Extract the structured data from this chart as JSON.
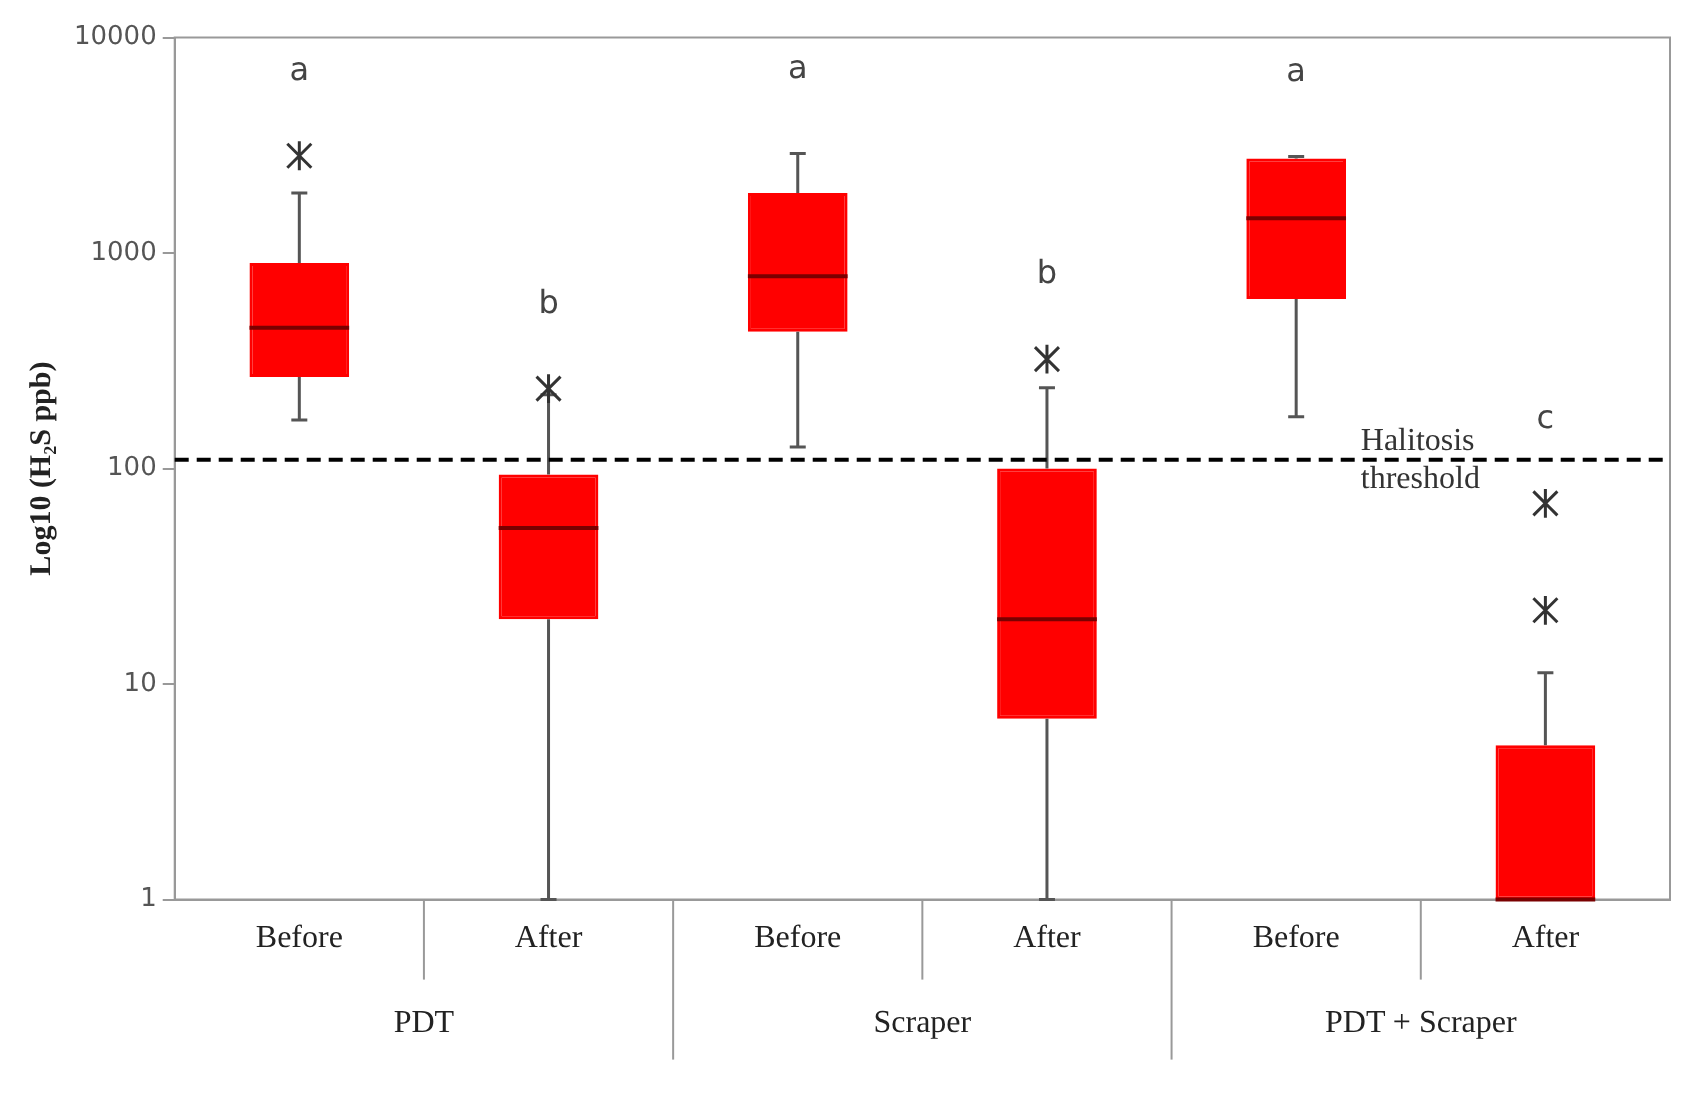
{
  "chart_data": {
    "type": "box",
    "categories": [
      "Before",
      "After",
      "Before",
      "After",
      "Before",
      "After"
    ],
    "ylabel": "Log10 (H₂S ppb)",
    "log": true,
    "ylim": [
      1,
      10000
    ],
    "yticks": [
      1,
      10,
      100,
      1000,
      10000
    ],
    "grid": false,
    "legend": false,
    "marker": "star",
    "series": [
      {
        "color": "#ff0000",
        "boxes": [
          {
            "low": 168,
            "q1": 266,
            "median": 450,
            "q3": 900,
            "high": 1900,
            "outliers": [
              2830
            ]
          },
          {
            "low": 1,
            "q1": 20,
            "median": 53,
            "q3": 94,
            "high": 220,
            "outliers": [
              235
            ]
          },
          {
            "low": 126,
            "q1": 432,
            "median": 780,
            "q3": 1900,
            "high": 2900
          },
          {
            "low": 1,
            "q1": 6.9,
            "median": 20,
            "q3": 100,
            "high": 237,
            "outliers": [
              322
            ]
          },
          {
            "low": 174,
            "q1": 612,
            "median": 1450,
            "q3": 2750,
            "high": 2810
          },
          {
            "low": 1,
            "q1": 1,
            "median": 1,
            "q3": 5.2,
            "high": 11.3,
            "outliers": [
              22,
              69
            ]
          }
        ]
      }
    ],
    "ref_lines": [
      {
        "axis": "y",
        "value": 110,
        "label": "Halitosis threshold",
        "line_style": "dashed",
        "color": "#000000"
      }
    ],
    "annotations": [
      "PDT",
      "Scraper",
      "PDT + Scraper",
      "a",
      "b",
      "a",
      "b",
      "a",
      "c"
    ]
  }
}
